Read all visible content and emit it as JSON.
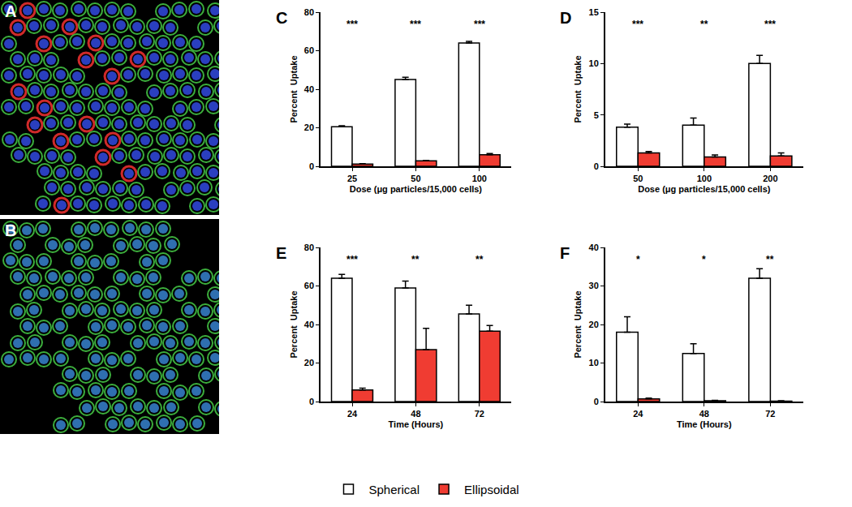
{
  "images": [
    {
      "label": "A"
    },
    {
      "label": "B"
    }
  ],
  "chart_data": [
    {
      "type": "bar",
      "title": "C",
      "legend": "bottom",
      "categories": [
        "25",
        "50",
        "100"
      ],
      "x_label": "Dose (μg particles/15,000 cells)",
      "y_label": "Percent  Uptake",
      "ylim": [
        0,
        80
      ],
      "yticks": [
        0,
        20,
        40,
        60,
        80
      ],
      "series": [
        {
          "name": "Spherical",
          "color": "#ffffff",
          "values": [
            20.5,
            45,
            64
          ],
          "errors": [
            0.6,
            1.2,
            0.8
          ]
        },
        {
          "name": "Ellipsoidal",
          "color": "#f03c32",
          "values": [
            1.2,
            2.8,
            6
          ],
          "errors": [
            0.2,
            0.3,
            0.6
          ]
        }
      ],
      "annotations": [
        {
          "x": "25",
          "text": "***"
        },
        {
          "x": "50",
          "text": "***"
        },
        {
          "x": "100",
          "text": "***"
        }
      ]
    },
    {
      "type": "bar",
      "title": "D",
      "legend": "bottom",
      "categories": [
        "50",
        "100",
        "200"
      ],
      "x_label": "Dose (μg particles/15,000 cells)",
      "y_label": "Percent  Uptake",
      "ylim": [
        0,
        15
      ],
      "yticks": [
        0,
        5,
        10,
        15
      ],
      "series": [
        {
          "name": "Spherical",
          "color": "#ffffff",
          "values": [
            3.8,
            4.0,
            10
          ],
          "errors": [
            0.3,
            0.7,
            0.8
          ]
        },
        {
          "name": "Ellipsoidal",
          "color": "#f03c32",
          "values": [
            1.3,
            0.9,
            1.0
          ],
          "errors": [
            0.15,
            0.2,
            0.3
          ]
        }
      ],
      "annotations": [
        {
          "x": "50",
          "text": "***"
        },
        {
          "x": "100",
          "text": "**"
        },
        {
          "x": "200",
          "text": "***"
        }
      ]
    },
    {
      "type": "bar",
      "title": "E",
      "legend": "bottom",
      "categories": [
        "24",
        "48",
        "72"
      ],
      "x_label": "Time (Hours)",
      "y_label": "Percent  Uptake",
      "ylim": [
        0,
        80
      ],
      "yticks": [
        0,
        20,
        40,
        60,
        80
      ],
      "series": [
        {
          "name": "Spherical",
          "color": "#ffffff",
          "values": [
            64,
            59,
            45.5
          ],
          "errors": [
            2,
            3.5,
            4.5
          ]
        },
        {
          "name": "Ellipsoidal",
          "color": "#f03c32",
          "values": [
            6,
            27,
            36.5
          ],
          "errors": [
            1,
            11,
            3
          ]
        }
      ],
      "annotations": [
        {
          "x": "24",
          "text": "***"
        },
        {
          "x": "48",
          "text": "**"
        },
        {
          "x": "72",
          "text": "**"
        }
      ]
    },
    {
      "type": "bar",
      "title": "F",
      "legend": "bottom",
      "categories": [
        "24",
        "48",
        "72"
      ],
      "x_label": "Time (Hours)",
      "y_label": "Percent  Uptake",
      "ylim": [
        0,
        40
      ],
      "yticks": [
        0,
        10,
        20,
        30,
        40
      ],
      "series": [
        {
          "name": "Spherical",
          "color": "#ffffff",
          "values": [
            18,
            12.5,
            32
          ],
          "errors": [
            4,
            2.5,
            2.5
          ]
        },
        {
          "name": "Ellipsoidal",
          "color": "#f03c32",
          "values": [
            0.7,
            0.2,
            0.1
          ],
          "errors": [
            0.2,
            0.1,
            0.1
          ]
        }
      ],
      "annotations": [
        {
          "x": "24",
          "text": "*"
        },
        {
          "x": "48",
          "text": "*"
        },
        {
          "x": "72",
          "text": "**"
        }
      ]
    }
  ]
}
